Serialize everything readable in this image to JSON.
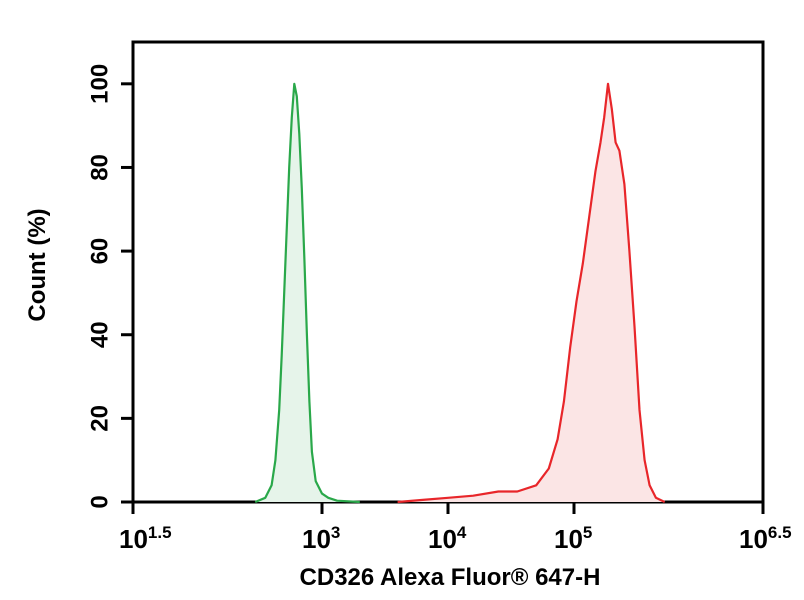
{
  "chart_data": {
    "type": "area",
    "xlabel": "CD326 Alexa Fluor® 647-H",
    "ylabel": "Count (%)",
    "x_scale": "log",
    "xlim_log10": [
      1.5,
      6.5
    ],
    "ylim": [
      0,
      110
    ],
    "grid": false,
    "legend": "none",
    "x_ticks": [
      {
        "exp": 1.5,
        "base": "10",
        "sup": "1.5"
      },
      {
        "exp": 3,
        "base": "10",
        "sup": "3"
      },
      {
        "exp": 4,
        "base": "10",
        "sup": "4"
      },
      {
        "exp": 5,
        "base": "10",
        "sup": "5"
      },
      {
        "exp": 6.5,
        "base": "10",
        "sup": "6.5"
      }
    ],
    "y_ticks": [
      "0",
      "20",
      "40",
      "60",
      "80",
      "100"
    ],
    "y_tick_values": [
      0,
      20,
      40,
      60,
      80,
      100
    ],
    "series": [
      {
        "color": "#2aa84a",
        "fill": "#e6f4ea",
        "points": [
          [
            2.47,
            0
          ],
          [
            2.55,
            1
          ],
          [
            2.6,
            4
          ],
          [
            2.63,
            10
          ],
          [
            2.66,
            22
          ],
          [
            2.68,
            35
          ],
          [
            2.7,
            50
          ],
          [
            2.72,
            65
          ],
          [
            2.74,
            80
          ],
          [
            2.76,
            92
          ],
          [
            2.78,
            100
          ],
          [
            2.8,
            97
          ],
          [
            2.82,
            88
          ],
          [
            2.84,
            75
          ],
          [
            2.86,
            58
          ],
          [
            2.88,
            40
          ],
          [
            2.9,
            24
          ],
          [
            2.92,
            12
          ],
          [
            2.95,
            5
          ],
          [
            3.0,
            2
          ],
          [
            3.05,
            1
          ],
          [
            3.12,
            0.3
          ],
          [
            3.3,
            0
          ]
        ]
      },
      {
        "color": "#e8262a",
        "fill": "#fbe5e5",
        "points": [
          [
            3.6,
            0
          ],
          [
            3.8,
            0.5
          ],
          [
            4.0,
            1
          ],
          [
            4.2,
            1.5
          ],
          [
            4.4,
            2.5
          ],
          [
            4.55,
            2.5
          ],
          [
            4.7,
            4
          ],
          [
            4.8,
            8
          ],
          [
            4.87,
            15
          ],
          [
            4.92,
            24
          ],
          [
            4.97,
            37
          ],
          [
            5.02,
            48
          ],
          [
            5.07,
            57
          ],
          [
            5.12,
            68
          ],
          [
            5.17,
            79
          ],
          [
            5.21,
            86
          ],
          [
            5.24,
            92
          ],
          [
            5.27,
            100
          ],
          [
            5.3,
            94
          ],
          [
            5.33,
            86
          ],
          [
            5.36,
            84
          ],
          [
            5.4,
            76
          ],
          [
            5.44,
            60
          ],
          [
            5.48,
            42
          ],
          [
            5.52,
            22
          ],
          [
            5.56,
            10
          ],
          [
            5.6,
            4
          ],
          [
            5.65,
            1
          ],
          [
            5.72,
            0
          ]
        ]
      }
    ]
  }
}
